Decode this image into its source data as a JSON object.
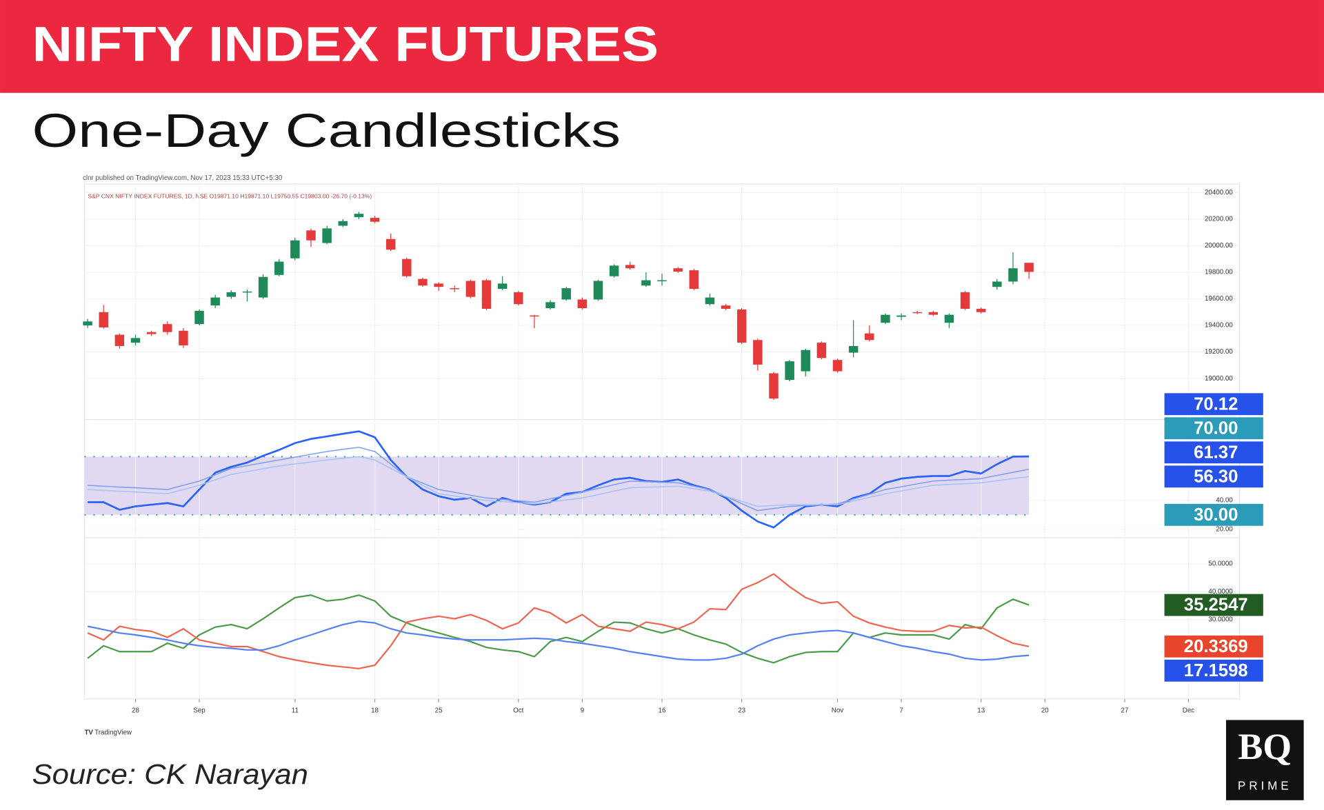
{
  "header": {
    "title": "NIFTY INDEX FUTURES",
    "subtitle": "One-Day Candlesticks"
  },
  "publisher_note": "clnr published on TradingView.com, Nov 17, 2023 15:33 UTC+5:30",
  "watermark": "TradingView",
  "source": "Source: CK Narayan",
  "logo": {
    "mark": "BQ",
    "name": "PRIME"
  },
  "chart_data": [
    {
      "type": "candlestick",
      "legend_text": "S&P CNX NIFTY INDEX FUTURES, 1D, NSE O19871.10 H19871.10 L19750.55 C19803.00 -26.70 (-0.13%)",
      "up_color": "#1e8a5a",
      "down_color": "#e53a3a",
      "grid": true,
      "xlim": [
        -0.2,
        72.2
      ],
      "ylim": [
        18692,
        20464
      ],
      "yticks": [
        {
          "value": 20400,
          "label": "20400.00"
        },
        {
          "value": 20200,
          "label": "20200.00"
        },
        {
          "value": 20000,
          "label": "20000.00"
        },
        {
          "value": 19800,
          "label": "19800.00"
        },
        {
          "value": 19600,
          "label": "19600.00"
        },
        {
          "value": 19400,
          "label": "19400.00"
        },
        {
          "value": 19200,
          "label": "19200.00"
        },
        {
          "value": 19000,
          "label": "19000.00"
        }
      ],
      "open": [
        19400,
        19500,
        19330,
        19270,
        19350,
        19410,
        19360,
        19410,
        19550,
        19615,
        19650,
        19610,
        19780,
        19905,
        20115,
        20020,
        20150,
        20215,
        20210,
        20050,
        19900,
        19750,
        19715,
        19680,
        19735,
        19740,
        19675,
        19650,
        19475,
        19530,
        19595,
        19595,
        19595,
        19770,
        19855,
        19700,
        19735,
        19830,
        19815,
        19560,
        19550,
        19520,
        19290,
        19040,
        18990,
        19055,
        19270,
        19140,
        19195,
        19340,
        19420,
        19465,
        19500,
        19500,
        19420,
        19650,
        19525,
        19690,
        19730,
        19871.1
      ],
      "high": [
        19450,
        19555,
        19340,
        19330,
        19360,
        19430,
        19380,
        19520,
        19630,
        19665,
        19670,
        19785,
        19900,
        20060,
        20130,
        20150,
        20200,
        20255,
        20225,
        20090,
        19910,
        19760,
        19725,
        19700,
        19745,
        19750,
        19770,
        19660,
        19480,
        19590,
        19690,
        19610,
        19745,
        19860,
        19880,
        19800,
        19790,
        19840,
        19825,
        19640,
        19560,
        19530,
        19300,
        19050,
        19140,
        19225,
        19280,
        19150,
        19440,
        19400,
        19490,
        19490,
        19510,
        19510,
        19490,
        19660,
        19535,
        19750,
        19950,
        19871.1
      ],
      "low": [
        19380,
        19375,
        19225,
        19250,
        19320,
        19330,
        19230,
        19400,
        19530,
        19600,
        19580,
        19600,
        19770,
        19890,
        19990,
        20010,
        20140,
        20200,
        20170,
        19960,
        19760,
        19690,
        19660,
        19650,
        19605,
        19515,
        19665,
        19550,
        19380,
        19520,
        19585,
        19520,
        19585,
        19760,
        19820,
        19690,
        19700,
        19795,
        19665,
        19550,
        19515,
        19260,
        19060,
        18840,
        18980,
        19015,
        19145,
        19045,
        19160,
        19280,
        19410,
        19440,
        19485,
        19470,
        19380,
        19515,
        19490,
        19670,
        19710,
        19750.55
      ],
      "close": [
        19430,
        19385,
        19245,
        19305,
        19335,
        19350,
        19250,
        19510,
        19610,
        19650,
        19655,
        19765,
        19880,
        20040,
        20040,
        20130,
        20185,
        20240,
        20180,
        19970,
        19770,
        19700,
        19690,
        19675,
        19615,
        19525,
        19715,
        19560,
        19470,
        19575,
        19680,
        19530,
        19735,
        19850,
        19830,
        19740,
        19740,
        19805,
        19675,
        19610,
        19525,
        19270,
        19105,
        18850,
        19130,
        19215,
        19155,
        19055,
        19245,
        19290,
        19480,
        19475,
        19495,
        19480,
        19480,
        19525,
        19500,
        19730,
        19830,
        19803
      ]
    },
    {
      "type": "line",
      "grid": true,
      "badge_side": "up",
      "xlim": [
        -0.2,
        72.2
      ],
      "ylim": [
        14.3,
        95.5
      ],
      "yticks": [
        {
          "value": 40,
          "label": "40.00"
        },
        {
          "value": 20,
          "label": "20.00"
        }
      ],
      "bands": [
        {
          "value": 70,
          "label": "70.00"
        },
        {
          "value": 30,
          "label": "30.00"
        }
      ],
      "band_color": "#2a9bb8",
      "band_fill": "#e0d9f1",
      "series": [
        {
          "color": "#2962ff",
          "label_color": "#2752ea",
          "width": 2.2,
          "last_label": "70.12",
          "values": [
            38.7,
            38.7,
            33.5,
            35.8,
            37.0,
            38.1,
            35.8,
            47.4,
            59.0,
            63.0,
            65.9,
            70.6,
            74.6,
            79.3,
            82.2,
            83.9,
            85.7,
            87.4,
            83.3,
            67.7,
            56.1,
            47.4,
            42.8,
            40.4,
            41.6,
            35.8,
            41.6,
            38.7,
            37.0,
            38.7,
            44.5,
            45.7,
            50.3,
            54.3,
            55.5,
            53.2,
            52.6,
            54.3,
            50.3,
            47.4,
            41.6,
            32.9,
            25.4,
            21.3,
            30.0,
            35.8,
            37.0,
            35.8,
            41.6,
            44.5,
            52.0,
            54.9,
            56.1,
            56.7,
            56.7,
            60.1,
            58.4,
            64.8,
            70.0,
            70.12
          ]
        },
        {
          "color": "#7f9ff2",
          "label_color": "#2752ea",
          "width": 1.3,
          "last_label": "61.37",
          "values": [
            50.3,
            49.7,
            49.1,
            48.6,
            48.0,
            47.4,
            50.3,
            53.2,
            57.5,
            61.9,
            63.8,
            65.8,
            67.7,
            69.6,
            71.6,
            73.5,
            75.0,
            76.4,
            73.5,
            64.8,
            56.1,
            51.8,
            47.4,
            45.5,
            43.5,
            41.6,
            40.6,
            39.7,
            38.7,
            41.0,
            43.4,
            45.7,
            48.2,
            50.7,
            53.2,
            52.8,
            52.4,
            52.0,
            49.7,
            47.4,
            42.6,
            37.7,
            32.9,
            34.4,
            35.8,
            36.4,
            36.9,
            37.5,
            40.8,
            44.1,
            47.4,
            49.3,
            51.3,
            53.2,
            53.8,
            54.3,
            54.9,
            57.1,
            59.2,
            61.37
          ]
        },
        {
          "color": "#a9c2f5",
          "label_color": "#2752ea",
          "width": 1.3,
          "last_label": "56.30",
          "values": [
            47.4,
            46.8,
            46.2,
            45.7,
            45.1,
            44.5,
            47.4,
            50.3,
            54.1,
            57.8,
            59.7,
            61.7,
            63.6,
            65.0,
            66.3,
            67.7,
            68.9,
            70.0,
            67.7,
            61.9,
            56.1,
            50.3,
            44.5,
            43.0,
            41.4,
            39.9,
            39.1,
            38.3,
            37.5,
            38.9,
            40.2,
            41.6,
            43.9,
            46.3,
            48.6,
            49.0,
            49.3,
            49.7,
            48.0,
            46.2,
            42.7,
            39.3,
            35.8,
            36.4,
            37.0,
            37.0,
            37.0,
            37.0,
            39.5,
            42.0,
            44.5,
            46.4,
            48.4,
            50.3,
            50.9,
            51.4,
            52.0,
            53.4,
            54.9,
            56.3
          ]
        }
      ]
    },
    {
      "type": "line",
      "grid": true,
      "badge_side": "down",
      "xlim": [
        -0.2,
        72.2
      ],
      "ylim": [
        1.5,
        57
      ],
      "yticks": [
        {
          "value": 50,
          "label": "50.0000"
        },
        {
          "value": 40,
          "label": "40.0000"
        },
        {
          "value": 30,
          "label": "30.0000"
        }
      ],
      "xticks": [
        {
          "value": 3,
          "label": "28"
        },
        {
          "value": 7,
          "label": "Sep"
        },
        {
          "value": 13,
          "label": "11"
        },
        {
          "value": 18,
          "label": "18"
        },
        {
          "value": 22,
          "label": "25"
        },
        {
          "value": 27,
          "label": "Oct"
        },
        {
          "value": 31,
          "label": "9"
        },
        {
          "value": 36,
          "label": "16"
        },
        {
          "value": 41,
          "label": "23"
        },
        {
          "value": 47,
          "label": "Nov"
        },
        {
          "value": 51,
          "label": "7"
        },
        {
          "value": 56,
          "label": "13"
        },
        {
          "value": 60,
          "label": "20"
        },
        {
          "value": 65,
          "label": "27"
        },
        {
          "value": 69,
          "label": "Dec"
        }
      ],
      "series": [
        {
          "color": "#4a9a4a",
          "label_color": "#235c23",
          "width": 1.8,
          "last_label": "35.2547",
          "values": [
            16.1,
            20.6,
            18.5,
            18.5,
            18.5,
            21.5,
            19.7,
            24.5,
            27.3,
            28.2,
            26.7,
            30.3,
            34.2,
            37.9,
            38.8,
            36.7,
            37.3,
            38.8,
            36.7,
            31.2,
            28.8,
            26.7,
            25.2,
            23.6,
            22.1,
            20.0,
            19.1,
            18.5,
            16.7,
            22.1,
            23.6,
            22.1,
            25.8,
            29.1,
            28.8,
            26.7,
            25.2,
            26.7,
            24.5,
            22.7,
            21.2,
            18.2,
            16.1,
            14.5,
            16.7,
            18.2,
            18.5,
            18.5,
            25.2,
            23.6,
            25.2,
            24.5,
            24.5,
            24.5,
            23.0,
            28.2,
            26.7,
            34.2,
            37.3,
            35.2547
          ]
        },
        {
          "color": "#f0634e",
          "label_color": "#e8452c",
          "width": 1.8,
          "last_label": "20.3369",
          "values": [
            25.2,
            22.7,
            27.6,
            26.4,
            25.8,
            23.6,
            26.7,
            22.7,
            21.5,
            20.3,
            20.3,
            18.5,
            16.7,
            15.5,
            14.5,
            13.6,
            13.0,
            12.4,
            13.6,
            20.6,
            29.1,
            30.3,
            31.2,
            30.3,
            31.8,
            29.7,
            26.7,
            28.8,
            34.2,
            32.4,
            28.8,
            31.8,
            27.6,
            26.7,
            25.8,
            29.1,
            28.2,
            26.7,
            29.1,
            33.9,
            33.6,
            40.9,
            43.3,
            46.4,
            41.8,
            37.9,
            35.8,
            36.4,
            31.2,
            28.8,
            27.3,
            26.1,
            25.8,
            25.8,
            27.9,
            27.0,
            27.3,
            24.2,
            21.5,
            20.3369
          ]
        },
        {
          "color": "#5580f5",
          "label_color": "#2752ea",
          "width": 1.8,
          "last_label": "17.1598",
          "values": [
            27.6,
            26.4,
            25.2,
            24.5,
            23.6,
            22.7,
            21.5,
            20.6,
            20.0,
            19.7,
            19.1,
            19.1,
            20.6,
            22.7,
            24.5,
            26.4,
            28.2,
            29.4,
            28.8,
            26.7,
            25.2,
            24.5,
            23.6,
            23.0,
            22.7,
            22.7,
            22.7,
            23.0,
            23.3,
            23.0,
            22.1,
            21.5,
            20.6,
            19.7,
            18.5,
            17.6,
            16.7,
            15.8,
            15.5,
            15.5,
            16.1,
            17.6,
            20.6,
            23.0,
            24.5,
            25.2,
            25.8,
            26.1,
            25.2,
            23.6,
            22.1,
            20.6,
            19.7,
            18.5,
            17.6,
            16.1,
            15.5,
            15.8,
            16.7,
            17.1598
          ]
        }
      ]
    }
  ]
}
